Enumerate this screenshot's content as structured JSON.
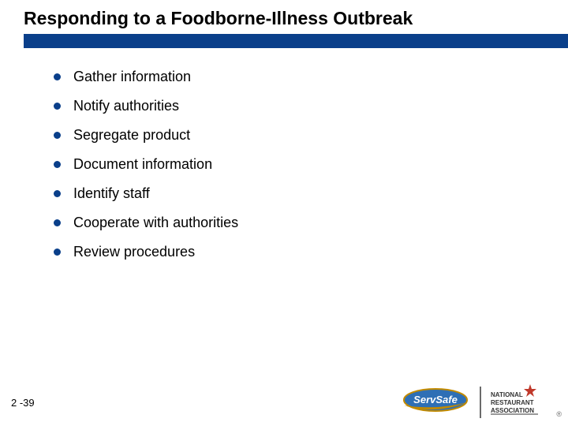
{
  "title": {
    "text": "Responding to a Foodborne-Illness Outbreak",
    "fontsize": 23,
    "color": "#000000",
    "weight": 700
  },
  "title_bar": {
    "color": "#0a3f8a",
    "height": 18
  },
  "bullets": {
    "items": [
      {
        "label": "Gather information"
      },
      {
        "label": "Notify authorities"
      },
      {
        "label": "Segregate product"
      },
      {
        "label": "Document information"
      },
      {
        "label": "Identify staff"
      },
      {
        "label": "Cooperate with authorities"
      },
      {
        "label": "Review procedures"
      }
    ],
    "dot_color": "#0a3f8a",
    "dot_size": 9,
    "text_fontsize": 18,
    "text_color": "#000000",
    "item_spacing": 16
  },
  "footer": {
    "page_number": "2 -39",
    "page_number_fontsize": 13,
    "servsafe": {
      "oval_fill": "#2e6fb5",
      "oval_stroke": "#c28a00",
      "swoosh_fill": "#c28a00",
      "text": "ServSafe",
      "text_color": "#ffffff"
    },
    "nra": {
      "line1": "NATIONAL",
      "line2": "RESTAURANT",
      "line3": "ASSOCIATION",
      "star_color": "#c0392b",
      "text_color": "#333333"
    },
    "divider_color": "#6b6b6b",
    "registered": "®"
  },
  "background_color": "#ffffff"
}
